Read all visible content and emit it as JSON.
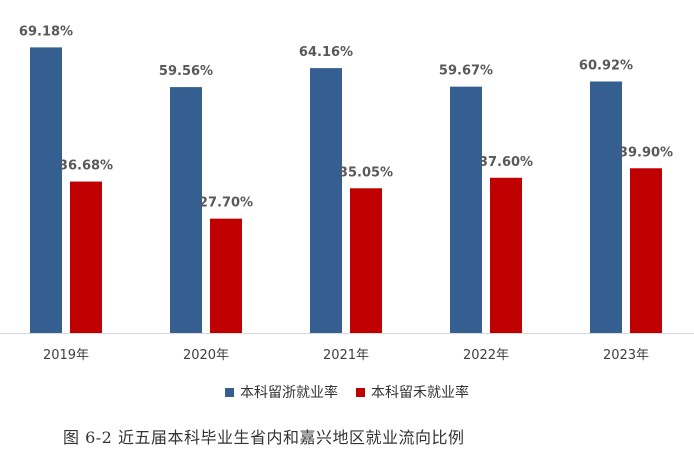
{
  "chart_data": {
    "type": "bar",
    "categories": [
      "2019年",
      "2020年",
      "2021年",
      "2022年",
      "2023年"
    ],
    "series": [
      {
        "name": "本科留浙就业率",
        "color": "#365f91",
        "values": [
          69.18,
          59.56,
          64.16,
          59.67,
          60.92
        ],
        "labels": [
          "69.18%",
          "59.56%",
          "64.16%",
          "59.67%",
          "60.92%"
        ]
      },
      {
        "name": "本科留禾就业率",
        "color": "#c00000",
        "values": [
          36.68,
          27.7,
          35.05,
          37.6,
          39.9
        ],
        "labels": [
          "36.68%",
          "27.70%",
          "35.05%",
          "37.60%",
          "39.90%"
        ]
      }
    ],
    "ylim": [
      0,
      70
    ],
    "grid": false,
    "legend_position": "bottom"
  },
  "caption": "图 6-2   近五届本科毕业生省内和嘉兴地区就业流向比例"
}
